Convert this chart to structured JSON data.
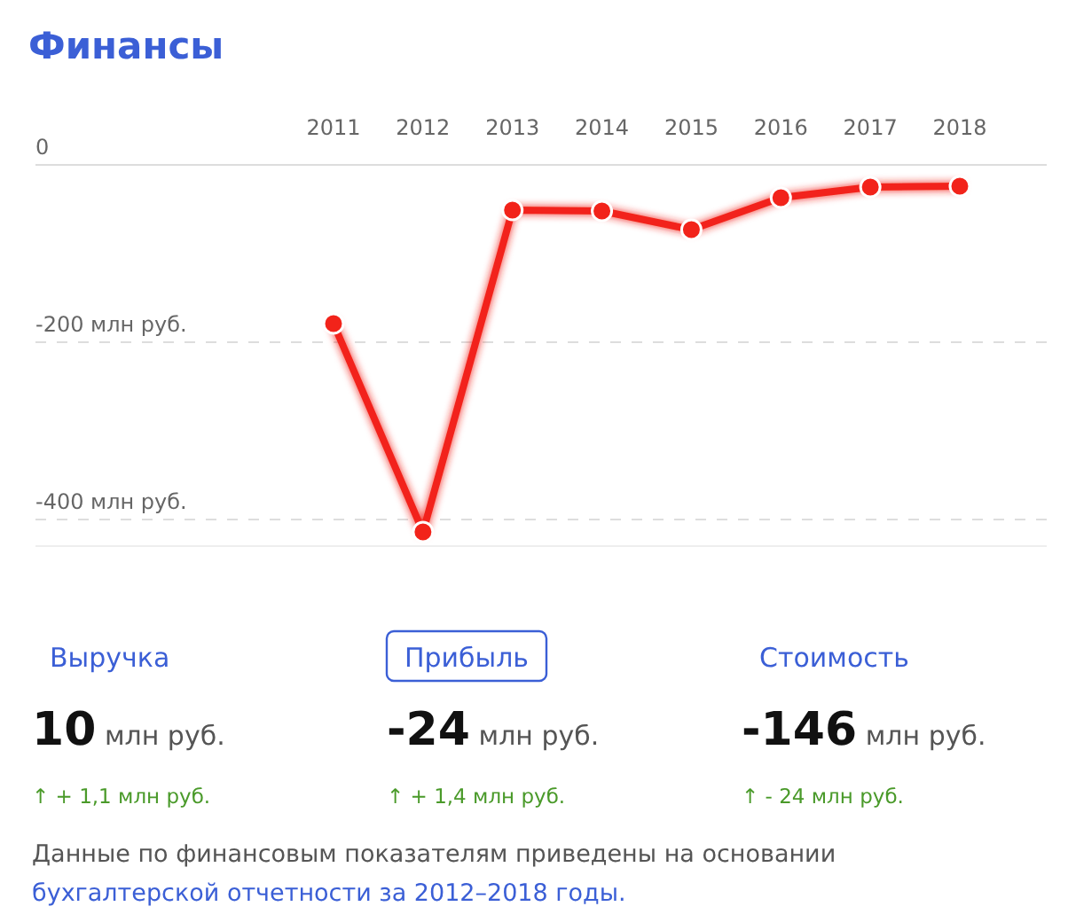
{
  "chart_data": [
    {
      "type": "line",
      "title": "Финансы",
      "categories": [
        "2011",
        "2012",
        "2013",
        "2014",
        "2015",
        "2016",
        "2017",
        "2018"
      ],
      "series": [
        {
          "color": "#f2231a",
          "values": [
            -179,
            -414,
            -51,
            -52,
            -73,
            -37,
            -25,
            -24
          ]
        }
      ],
      "ylim": [
        -430,
        0
      ],
      "yticks": [
        0,
        {
          "value": -200,
          "label": "-200 млн руб."
        },
        {
          "value": -400,
          "label": "-400 млн руб."
        }
      ],
      "grid": "y",
      "marker": "circle",
      "line_style": "solid"
    },
    {
      "type": "other",
      "categories": [
        "Выручка",
        "Прибыль",
        "Стоимость"
      ],
      "value_labels": [
        "10 млн руб.",
        "-24 млн руб.",
        "-146 млн руб."
      ],
      "annotations": [
        "↑ + 1,1 млн руб.",
        "↑ + 1,4 млн руб.",
        "↑ - 24 млн руб.",
        "Данные по финансовым показателям приведены на основании",
        "бухгалтерской отчетности за 2012–2018 годы."
      ]
    }
  ]
}
